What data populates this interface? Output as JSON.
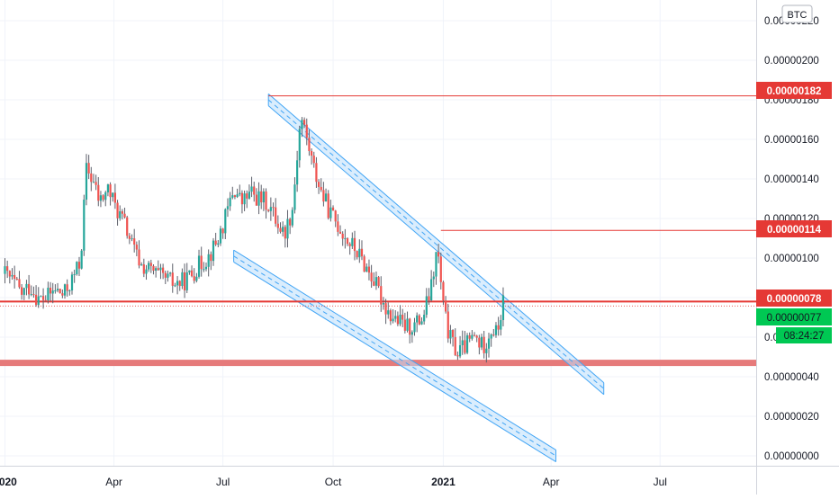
{
  "currency_badge": "BTC",
  "colors": {
    "up": "#26a69a",
    "down": "#ef5350",
    "wick": "#5d606b",
    "level_line": "#e53935",
    "support_zone": "#e57373",
    "channel_fill": "#bbdefb",
    "channel_line": "#42a5f5",
    "last_price_bg": "#00c853",
    "axis_text": "#131722"
  },
  "price_labels": {
    "level_high": "0.00000182",
    "level_mid": "0.00000114",
    "level_current": "0.00000078",
    "last_price": "0.00000077",
    "countdown": "08:24:27"
  },
  "chart_data": {
    "type": "candlestick",
    "title": "",
    "ylim": [
      0,
      2.2e-06
    ],
    "y_tick_labels": [
      "0.00000000",
      "0.00000020",
      "0.00000040",
      "0.00000060",
      "0.00000080",
      "0.00000100",
      "0.00000120",
      "0.00000140",
      "0.00000160",
      "0.00000180",
      "0.00000200",
      "0.00000220"
    ],
    "y_ticks": [
      0,
      2e-07,
      4e-07,
      6e-07,
      8e-07,
      1e-06,
      1.2e-06,
      1.4e-06,
      1.6e-06,
      1.8e-06,
      2e-06,
      2.2e-06
    ],
    "x_range": [
      "2020-01-01",
      "2021-09-20"
    ],
    "x_ticks": [
      {
        "label": "2020",
        "date": "2020-01-01"
      },
      {
        "label": "Apr",
        "date": "2020-04-01"
      },
      {
        "label": "Jul",
        "date": "2020-07-01"
      },
      {
        "label": "Oct",
        "date": "2020-10-01"
      },
      {
        "label": "2021",
        "date": "2021-01-01"
      },
      {
        "label": "Apr",
        "date": "2021-04-01"
      },
      {
        "label": "Jul",
        "date": "2021-07-01"
      }
    ],
    "x_tick_bold": [
      "2020",
      "2021"
    ],
    "horizontal_levels": [
      1.82e-06,
      1.14e-06,
      7.8e-07
    ],
    "support_zone": 4.7e-07,
    "channel_upper": {
      "start": {
        "date": "2020-08-08",
        "value": 1.83e-06
      },
      "end": {
        "date": "2021-05-15",
        "value": 3.7e-07
      },
      "width": 6e-08
    },
    "channel_lower": {
      "start": {
        "date": "2020-07-10",
        "value": 1.04e-06
      },
      "end": {
        "date": "2021-04-05",
        "value": 3e-08
      },
      "width": 6e-08
    },
    "price_path": [
      [
        "2020-01-01",
        9.2e-07
      ],
      [
        "2020-01-08",
        8.8e-07
      ],
      [
        "2020-01-15",
        8.2e-07
      ],
      [
        "2020-01-22",
        8.6e-07
      ],
      [
        "2020-01-29",
        7.9e-07
      ],
      [
        "2020-02-05",
        8e-07
      ],
      [
        "2020-02-12",
        8.4e-07
      ],
      [
        "2020-02-19",
        8.1e-07
      ],
      [
        "2020-02-26",
        8.9e-07
      ],
      [
        "2020-03-04",
        9.8e-07
      ],
      [
        "2020-03-09",
        1.45e-06
      ],
      [
        "2020-03-14",
        1.4e-06
      ],
      [
        "2020-03-20",
        1.28e-06
      ],
      [
        "2020-03-27",
        1.35e-06
      ],
      [
        "2020-04-03",
        1.25e-06
      ],
      [
        "2020-04-10",
        1.17e-06
      ],
      [
        "2020-04-17",
        1.05e-06
      ],
      [
        "2020-04-24",
        9.6e-07
      ],
      [
        "2020-05-01",
        9.4e-07
      ],
      [
        "2020-05-08",
        9.1e-07
      ],
      [
        "2020-05-15",
        8.9e-07
      ],
      [
        "2020-05-22",
        8.7e-07
      ],
      [
        "2020-05-29",
        8.8e-07
      ],
      [
        "2020-06-05",
        9.2e-07
      ],
      [
        "2020-06-12",
        9.7e-07
      ],
      [
        "2020-06-19",
        1.01e-06
      ],
      [
        "2020-06-26",
        1.08e-06
      ],
      [
        "2020-07-03",
        1.2e-06
      ],
      [
        "2020-07-10",
        1.35e-06
      ],
      [
        "2020-07-17",
        1.28e-06
      ],
      [
        "2020-07-24",
        1.33e-06
      ],
      [
        "2020-07-31",
        1.3e-06
      ],
      [
        "2020-08-07",
        1.28e-06
      ],
      [
        "2020-08-14",
        1.2e-06
      ],
      [
        "2020-08-21",
        1.12e-06
      ],
      [
        "2020-08-28",
        1.25e-06
      ],
      [
        "2020-09-04",
        1.72e-06
      ],
      [
        "2020-09-08",
        1.63e-06
      ],
      [
        "2020-09-15",
        1.45e-06
      ],
      [
        "2020-09-22",
        1.32e-06
      ],
      [
        "2020-09-29",
        1.22e-06
      ],
      [
        "2020-10-06",
        1.16e-06
      ],
      [
        "2020-10-13",
        1.09e-06
      ],
      [
        "2020-10-20",
        1.04e-06
      ],
      [
        "2020-10-27",
        9.7e-07
      ],
      [
        "2020-11-03",
        9e-07
      ],
      [
        "2020-11-10",
        8e-07
      ],
      [
        "2020-11-17",
        7.2e-07
      ],
      [
        "2020-11-24",
        6.8e-07
      ],
      [
        "2020-12-01",
        6.5e-07
      ],
      [
        "2020-12-08",
        6.6e-07
      ],
      [
        "2020-12-15",
        7e-07
      ],
      [
        "2020-12-22",
        8.5e-07
      ],
      [
        "2020-12-27",
        1.05e-06
      ],
      [
        "2021-01-01",
        7.5e-07
      ],
      [
        "2021-01-06",
        6e-07
      ],
      [
        "2021-01-13",
        5.2e-07
      ],
      [
        "2021-01-20",
        5.6e-07
      ],
      [
        "2021-01-27",
        6e-07
      ],
      [
        "2021-02-03",
        5.5e-07
      ],
      [
        "2021-02-10",
        6.4e-07
      ],
      [
        "2021-02-15",
        6.2e-07
      ],
      [
        "2021-02-20",
        7.7e-07
      ]
    ]
  }
}
